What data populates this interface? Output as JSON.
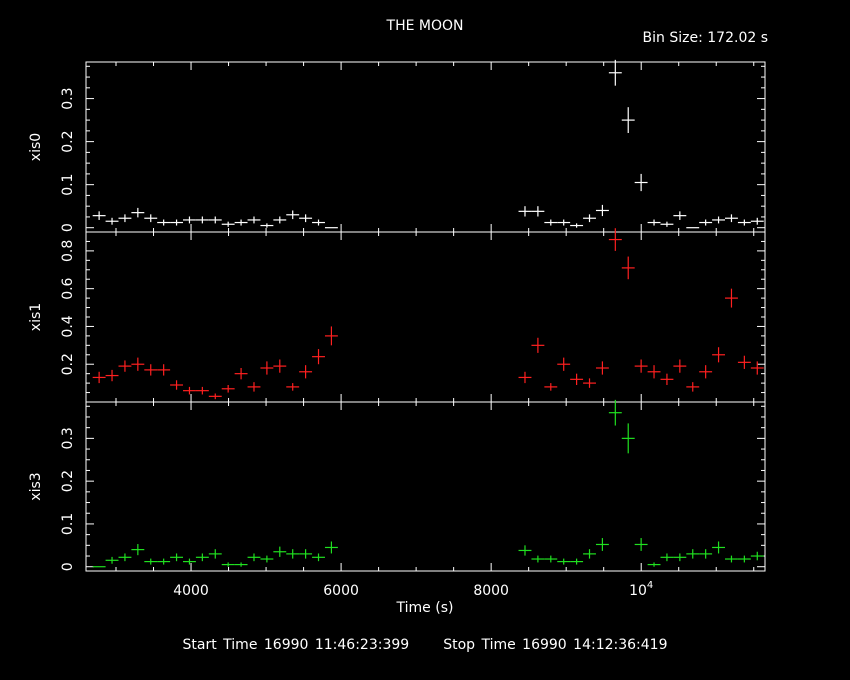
{
  "title": "THE MOON",
  "bin_size_label": "Bin Size: 172.02 s",
  "footer": {
    "start_label": "Start Time 16990 11:46:23:399",
    "stop_label": "Stop Time 16990 14:12:36:419"
  },
  "chart_data": {
    "type": "scatter",
    "title": "THE MOON",
    "xlabel": "Time (s)",
    "xlim": [
      2600,
      11650
    ],
    "x_ticks": [
      {
        "value": 4000,
        "label": "4000"
      },
      {
        "value": 6000,
        "label": "6000"
      },
      {
        "value": 8000,
        "label": "8000"
      },
      {
        "value": 10000,
        "label": "10^4"
      }
    ],
    "x_error": 86,
    "panels": [
      {
        "name": "xis0",
        "ylabel": "xis0",
        "color": "#ffffff",
        "ylim": [
          -0.01,
          0.385
        ],
        "yticks": [
          0,
          0.1,
          0.2,
          0.3
        ],
        "ytick_labels": [
          "0",
          "0.1",
          "0.2",
          "0.3"
        ],
        "points": [
          {
            "x": 2775,
            "y": 0.028,
            "e": 0.01
          },
          {
            "x": 2947,
            "y": 0.015,
            "e": 0.008
          },
          {
            "x": 3119,
            "y": 0.022,
            "e": 0.009
          },
          {
            "x": 3291,
            "y": 0.035,
            "e": 0.011
          },
          {
            "x": 3463,
            "y": 0.022,
            "e": 0.009
          },
          {
            "x": 3635,
            "y": 0.012,
            "e": 0.007
          },
          {
            "x": 3807,
            "y": 0.012,
            "e": 0.007
          },
          {
            "x": 3979,
            "y": 0.018,
            "e": 0.008
          },
          {
            "x": 4151,
            "y": 0.018,
            "e": 0.008
          },
          {
            "x": 4323,
            "y": 0.018,
            "e": 0.008
          },
          {
            "x": 4495,
            "y": 0.008,
            "e": 0.006
          },
          {
            "x": 4667,
            "y": 0.012,
            "e": 0.007
          },
          {
            "x": 4839,
            "y": 0.018,
            "e": 0.008
          },
          {
            "x": 5011,
            "y": 0.005,
            "e": 0.005
          },
          {
            "x": 5183,
            "y": 0.018,
            "e": 0.008
          },
          {
            "x": 5355,
            "y": 0.03,
            "e": 0.01
          },
          {
            "x": 5527,
            "y": 0.022,
            "e": 0.009
          },
          {
            "x": 5699,
            "y": 0.012,
            "e": 0.007
          },
          {
            "x": 5871,
            "y": 0.0,
            "e": 0.0
          },
          {
            "x": 8451,
            "y": 0.038,
            "e": 0.012
          },
          {
            "x": 8623,
            "y": 0.038,
            "e": 0.012
          },
          {
            "x": 8795,
            "y": 0.012,
            "e": 0.007
          },
          {
            "x": 8967,
            "y": 0.012,
            "e": 0.007
          },
          {
            "x": 9139,
            "y": 0.005,
            "e": 0.005
          },
          {
            "x": 9311,
            "y": 0.022,
            "e": 0.009
          },
          {
            "x": 9483,
            "y": 0.04,
            "e": 0.013
          },
          {
            "x": 9655,
            "y": 0.36,
            "e": 0.03
          },
          {
            "x": 9827,
            "y": 0.25,
            "e": 0.03
          },
          {
            "x": 9999,
            "y": 0.105,
            "e": 0.02
          },
          {
            "x": 10171,
            "y": 0.012,
            "e": 0.007
          },
          {
            "x": 10343,
            "y": 0.008,
            "e": 0.006
          },
          {
            "x": 10515,
            "y": 0.028,
            "e": 0.01
          },
          {
            "x": 10687,
            "y": 0.0,
            "e": 0.0
          },
          {
            "x": 10859,
            "y": 0.012,
            "e": 0.007
          },
          {
            "x": 11031,
            "y": 0.018,
            "e": 0.008
          },
          {
            "x": 11203,
            "y": 0.022,
            "e": 0.009
          },
          {
            "x": 11375,
            "y": 0.012,
            "e": 0.007
          },
          {
            "x": 11547,
            "y": 0.015,
            "e": 0.008
          }
        ]
      },
      {
        "name": "xis1",
        "ylabel": "xis1",
        "color": "#ff2020",
        "ylim": [
          0.0,
          0.9
        ],
        "yticks": [
          0.2,
          0.4,
          0.6,
          0.8
        ],
        "ytick_labels": [
          "0.2",
          "0.4",
          "0.6",
          "0.8"
        ],
        "points": [
          {
            "x": 2775,
            "y": 0.13,
            "e": 0.03
          },
          {
            "x": 2947,
            "y": 0.14,
            "e": 0.03
          },
          {
            "x": 3119,
            "y": 0.19,
            "e": 0.03
          },
          {
            "x": 3291,
            "y": 0.2,
            "e": 0.035
          },
          {
            "x": 3463,
            "y": 0.17,
            "e": 0.03
          },
          {
            "x": 3635,
            "y": 0.17,
            "e": 0.03
          },
          {
            "x": 3807,
            "y": 0.09,
            "e": 0.025
          },
          {
            "x": 3979,
            "y": 0.06,
            "e": 0.02
          },
          {
            "x": 4151,
            "y": 0.06,
            "e": 0.02
          },
          {
            "x": 4323,
            "y": 0.03,
            "e": 0.015
          },
          {
            "x": 4495,
            "y": 0.07,
            "e": 0.02
          },
          {
            "x": 4667,
            "y": 0.15,
            "e": 0.03
          },
          {
            "x": 4839,
            "y": 0.08,
            "e": 0.025
          },
          {
            "x": 5011,
            "y": 0.18,
            "e": 0.035
          },
          {
            "x": 5183,
            "y": 0.19,
            "e": 0.035
          },
          {
            "x": 5355,
            "y": 0.08,
            "e": 0.02
          },
          {
            "x": 5527,
            "y": 0.16,
            "e": 0.035
          },
          {
            "x": 5699,
            "y": 0.24,
            "e": 0.04
          },
          {
            "x": 5871,
            "y": 0.35,
            "e": 0.05
          },
          {
            "x": 8451,
            "y": 0.13,
            "e": 0.03
          },
          {
            "x": 8623,
            "y": 0.3,
            "e": 0.04
          },
          {
            "x": 8795,
            "y": 0.08,
            "e": 0.02
          },
          {
            "x": 8967,
            "y": 0.2,
            "e": 0.035
          },
          {
            "x": 9139,
            "y": 0.12,
            "e": 0.03
          },
          {
            "x": 9311,
            "y": 0.1,
            "e": 0.025
          },
          {
            "x": 9483,
            "y": 0.18,
            "e": 0.035
          },
          {
            "x": 9655,
            "y": 0.86,
            "e": 0.06
          },
          {
            "x": 9827,
            "y": 0.71,
            "e": 0.06
          },
          {
            "x": 9999,
            "y": 0.19,
            "e": 0.035
          },
          {
            "x": 10171,
            "y": 0.16,
            "e": 0.035
          },
          {
            "x": 10343,
            "y": 0.12,
            "e": 0.03
          },
          {
            "x": 10515,
            "y": 0.19,
            "e": 0.035
          },
          {
            "x": 10687,
            "y": 0.08,
            "e": 0.025
          },
          {
            "x": 10859,
            "y": 0.16,
            "e": 0.035
          },
          {
            "x": 11031,
            "y": 0.25,
            "e": 0.04
          },
          {
            "x": 11203,
            "y": 0.55,
            "e": 0.05
          },
          {
            "x": 11375,
            "y": 0.21,
            "e": 0.035
          },
          {
            "x": 11547,
            "y": 0.18,
            "e": 0.035
          }
        ]
      },
      {
        "name": "xis3",
        "ylabel": "xis3",
        "color": "#20e020",
        "ylim": [
          -0.01,
          0.385
        ],
        "yticks": [
          0,
          0.1,
          0.2,
          0.3
        ],
        "ytick_labels": [
          "0",
          "0.1",
          "0.2",
          "0.3"
        ],
        "points": [
          {
            "x": 2775,
            "y": 0.0,
            "e": 0.0
          },
          {
            "x": 2947,
            "y": 0.015,
            "e": 0.008
          },
          {
            "x": 3119,
            "y": 0.022,
            "e": 0.009
          },
          {
            "x": 3291,
            "y": 0.04,
            "e": 0.013
          },
          {
            "x": 3463,
            "y": 0.012,
            "e": 0.007
          },
          {
            "x": 3635,
            "y": 0.012,
            "e": 0.007
          },
          {
            "x": 3807,
            "y": 0.022,
            "e": 0.009
          },
          {
            "x": 3979,
            "y": 0.012,
            "e": 0.007
          },
          {
            "x": 4151,
            "y": 0.022,
            "e": 0.009
          },
          {
            "x": 4323,
            "y": 0.03,
            "e": 0.011
          },
          {
            "x": 4495,
            "y": 0.005,
            "e": 0.005
          },
          {
            "x": 4667,
            "y": 0.005,
            "e": 0.005
          },
          {
            "x": 4839,
            "y": 0.022,
            "e": 0.009
          },
          {
            "x": 5011,
            "y": 0.018,
            "e": 0.008
          },
          {
            "x": 5183,
            "y": 0.035,
            "e": 0.012
          },
          {
            "x": 5355,
            "y": 0.03,
            "e": 0.011
          },
          {
            "x": 5527,
            "y": 0.03,
            "e": 0.011
          },
          {
            "x": 5699,
            "y": 0.022,
            "e": 0.009
          },
          {
            "x": 5871,
            "y": 0.045,
            "e": 0.014
          },
          {
            "x": 8451,
            "y": 0.038,
            "e": 0.012
          },
          {
            "x": 8623,
            "y": 0.018,
            "e": 0.008
          },
          {
            "x": 8795,
            "y": 0.018,
            "e": 0.008
          },
          {
            "x": 8967,
            "y": 0.012,
            "e": 0.007
          },
          {
            "x": 9139,
            "y": 0.012,
            "e": 0.007
          },
          {
            "x": 9311,
            "y": 0.03,
            "e": 0.011
          },
          {
            "x": 9483,
            "y": 0.052,
            "e": 0.015
          },
          {
            "x": 9655,
            "y": 0.36,
            "e": 0.03
          },
          {
            "x": 9827,
            "y": 0.3,
            "e": 0.035
          },
          {
            "x": 9999,
            "y": 0.052,
            "e": 0.015
          },
          {
            "x": 10171,
            "y": 0.005,
            "e": 0.005
          },
          {
            "x": 10343,
            "y": 0.022,
            "e": 0.009
          },
          {
            "x": 10515,
            "y": 0.022,
            "e": 0.009
          },
          {
            "x": 10687,
            "y": 0.03,
            "e": 0.011
          },
          {
            "x": 10859,
            "y": 0.03,
            "e": 0.011
          },
          {
            "x": 11031,
            "y": 0.045,
            "e": 0.014
          },
          {
            "x": 11203,
            "y": 0.018,
            "e": 0.008
          },
          {
            "x": 11375,
            "y": 0.018,
            "e": 0.008
          },
          {
            "x": 11547,
            "y": 0.025,
            "e": 0.01
          }
        ]
      }
    ]
  }
}
